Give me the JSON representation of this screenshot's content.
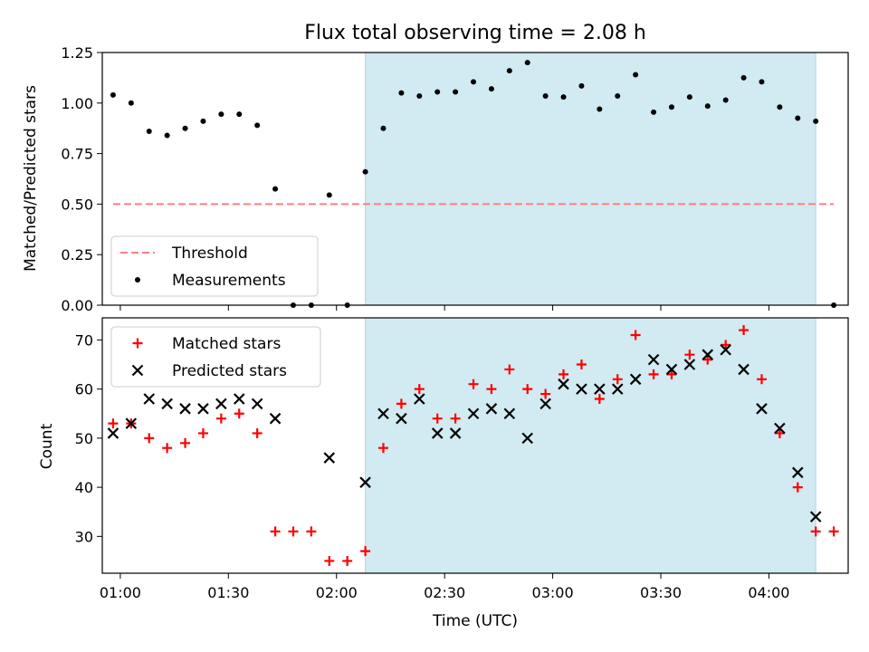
{
  "title": "Flux total observing time = 2.08 h",
  "colors": {
    "shade": "#add8e6",
    "threshold": "#ff7f7f",
    "measurement": "#000000",
    "matched": "#ff0000",
    "predicted": "#000000"
  },
  "chart_data": [
    {
      "type": "scatter",
      "panel": "top",
      "xlabel": "",
      "ylabel": "Matched/Predicted stars",
      "ylim": [
        0.0,
        1.25
      ],
      "yticks": [
        "0.00",
        "0.25",
        "0.50",
        "0.75",
        "1.00",
        "1.25"
      ],
      "legend_placement": "lower-left",
      "shaded_span": [
        "02:08",
        "04:13"
      ],
      "series": [
        {
          "name": "Threshold",
          "style": "dashed-line",
          "x": [
            "00:58",
            "04:18"
          ],
          "y": [
            0.5,
            0.5
          ]
        },
        {
          "name": "Measurements",
          "style": "dot",
          "x": [
            "00:58",
            "01:03",
            "01:08",
            "01:13",
            "01:18",
            "01:23",
            "01:28",
            "01:33",
            "01:38",
            "01:43",
            "01:48",
            "01:53",
            "01:58",
            "02:03",
            "02:08",
            "02:13",
            "02:18",
            "02:23",
            "02:28",
            "02:33",
            "02:38",
            "02:43",
            "02:48",
            "02:53",
            "02:58",
            "03:03",
            "03:08",
            "03:13",
            "03:18",
            "03:23",
            "03:28",
            "03:33",
            "03:38",
            "03:43",
            "03:48",
            "03:53",
            "03:58",
            "04:03",
            "04:08",
            "04:13",
            "04:18"
          ],
          "y": [
            1.04,
            1.0,
            0.86,
            0.84,
            0.875,
            0.91,
            0.945,
            0.945,
            0.89,
            0.575,
            0.0,
            0.0,
            0.545,
            0.0,
            0.66,
            0.875,
            1.05,
            1.035,
            1.055,
            1.055,
            1.105,
            1.07,
            1.16,
            1.2,
            1.035,
            1.03,
            1.085,
            0.97,
            1.035,
            1.14,
            0.955,
            0.98,
            1.03,
            0.985,
            1.015,
            1.125,
            1.105,
            0.98,
            0.925,
            0.91,
            0.0
          ]
        }
      ]
    },
    {
      "type": "scatter",
      "panel": "bottom",
      "xlabel": "Time (UTC)",
      "ylabel": "Count",
      "ylim": [
        22.5,
        74.5
      ],
      "yticks": [
        "30",
        "40",
        "50",
        "60",
        "70"
      ],
      "xticks": [
        "01:00",
        "01:30",
        "02:00",
        "02:30",
        "03:00",
        "03:30",
        "04:00"
      ],
      "legend_placement": "upper-left",
      "shaded_span": [
        "02:08",
        "04:13"
      ],
      "series": [
        {
          "name": "Matched stars",
          "style": "plus",
          "x": [
            "00:58",
            "01:03",
            "01:08",
            "01:13",
            "01:18",
            "01:23",
            "01:28",
            "01:33",
            "01:38",
            "01:43",
            "01:48",
            "01:53",
            "01:58",
            "02:03",
            "02:08",
            "02:13",
            "02:18",
            "02:23",
            "02:28",
            "02:33",
            "02:38",
            "02:43",
            "02:48",
            "02:53",
            "02:58",
            "03:03",
            "03:08",
            "03:13",
            "03:18",
            "03:23",
            "03:28",
            "03:33",
            "03:38",
            "03:43",
            "03:48",
            "03:53",
            "03:58",
            "04:03",
            "04:08",
            "04:13",
            "04:18"
          ],
          "y": [
            53,
            53,
            50,
            48,
            49,
            51,
            54,
            55,
            51,
            31,
            31,
            31,
            25,
            25,
            27,
            48,
            57,
            60,
            54,
            54,
            61,
            60,
            64,
            60,
            59,
            63,
            65,
            58,
            62,
            71,
            63,
            63,
            67,
            66,
            69,
            72,
            62,
            51,
            40,
            31,
            31
          ]
        },
        {
          "name": "Predicted stars",
          "style": "x",
          "x": [
            "00:58",
            "01:03",
            "01:08",
            "01:13",
            "01:18",
            "01:23",
            "01:28",
            "01:33",
            "01:38",
            "01:43",
            "01:58",
            "02:08",
            "02:13",
            "02:18",
            "02:23",
            "02:28",
            "02:33",
            "02:38",
            "02:43",
            "02:48",
            "02:53",
            "02:58",
            "03:03",
            "03:08",
            "03:13",
            "03:18",
            "03:23",
            "03:28",
            "03:33",
            "03:38",
            "03:43",
            "03:48",
            "03:53",
            "03:58",
            "04:03",
            "04:08",
            "04:13"
          ],
          "y": [
            51,
            53,
            58,
            57,
            56,
            56,
            57,
            58,
            57,
            54,
            46,
            41,
            55,
            54,
            58,
            51,
            51,
            55,
            56,
            55,
            50,
            57,
            61,
            60,
            60,
            60,
            62,
            66,
            64,
            65,
            67,
            68,
            64,
            56,
            52,
            43,
            34
          ]
        }
      ]
    }
  ]
}
